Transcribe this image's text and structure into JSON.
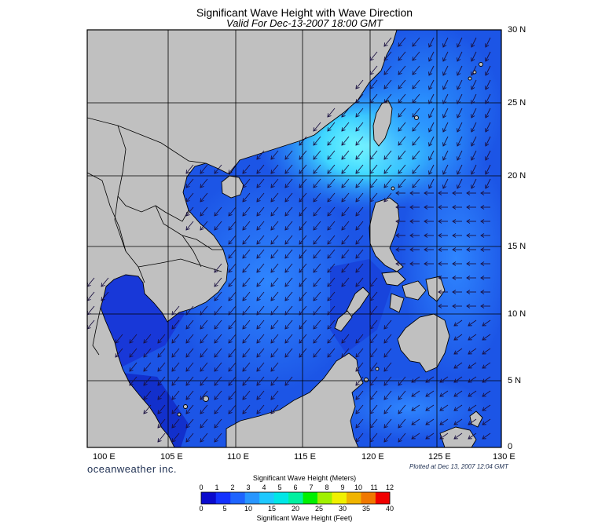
{
  "header": {
    "title": "Significant Wave Height with Wave Direction",
    "subtitle": "Valid For Dec-13-2007 18:00 GMT"
  },
  "map": {
    "lat_labels": [
      "30 N",
      "25 N",
      "20 N",
      "15 N",
      "10 N",
      "5 N",
      "0"
    ],
    "lon_labels": [
      "100 E",
      "105 E",
      "110 E",
      "115 E",
      "120 E",
      "125 E",
      "130 E"
    ],
    "land_color": "#c0c0c0",
    "sea_base_color": "#1c55e6",
    "arrow_direction": "southwest",
    "grid": true
  },
  "footer": {
    "brand": "oceanweather inc.",
    "plotted": "Plotted at Dec 13, 2007 12:04 GMT"
  },
  "colorbar": {
    "title_meters": "Significant Wave Height (Meters)",
    "title_feet": "Significant Wave Height (Feet)",
    "meters_ticks": [
      "0",
      "1",
      "2",
      "3",
      "4",
      "5",
      "6",
      "7",
      "8",
      "9",
      "10",
      "11",
      "12"
    ],
    "feet_ticks": [
      "0",
      "5",
      "10",
      "15",
      "20",
      "25",
      "30",
      "35",
      "40"
    ],
    "colors": [
      "#0a0acd",
      "#1432ff",
      "#1e64ff",
      "#2896ff",
      "#1ec8ff",
      "#00e6e6",
      "#00f0a0",
      "#00f000",
      "#a0f000",
      "#f0f000",
      "#f0b400",
      "#f07800",
      "#f00000"
    ]
  }
}
